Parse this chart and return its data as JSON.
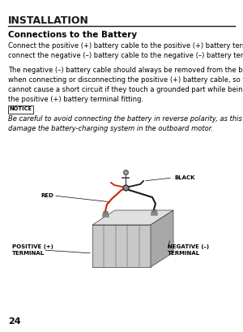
{
  "bg_color": "#ffffff",
  "title": "INSTALLATION",
  "section_title": "Connections to the Battery",
  "para1": "Connect the positive (+) battery cable to the positive (+) battery terminal, then\nconnect the negative (–) battery cable to the negative (–) battery terminal.",
  "para2": "The negative (–) battery cable should always be removed from the battery\nwhen connecting or disconnecting the positive (+) battery cable, so tools\ncannot cause a short circuit if they touch a grounded part while being used on\nthe positive (+) battery terminal fitting.",
  "notice_label": "NOTICE",
  "notice_text": "Be careful to avoid connecting the battery in reverse polarity, as this will\ndamage the battery-charging system in the outboard motor.",
  "page_number": "24",
  "diagram_labels": {
    "black": "BLACK",
    "red": "RED",
    "positive": "POSITIVE (+)\nTERMINAL",
    "negative": "NEGATIVE (–)\nTERMINAL"
  },
  "title_fontsize": 9,
  "section_fontsize": 7.5,
  "body_fontsize": 6.0,
  "notice_fontsize": 5.5
}
